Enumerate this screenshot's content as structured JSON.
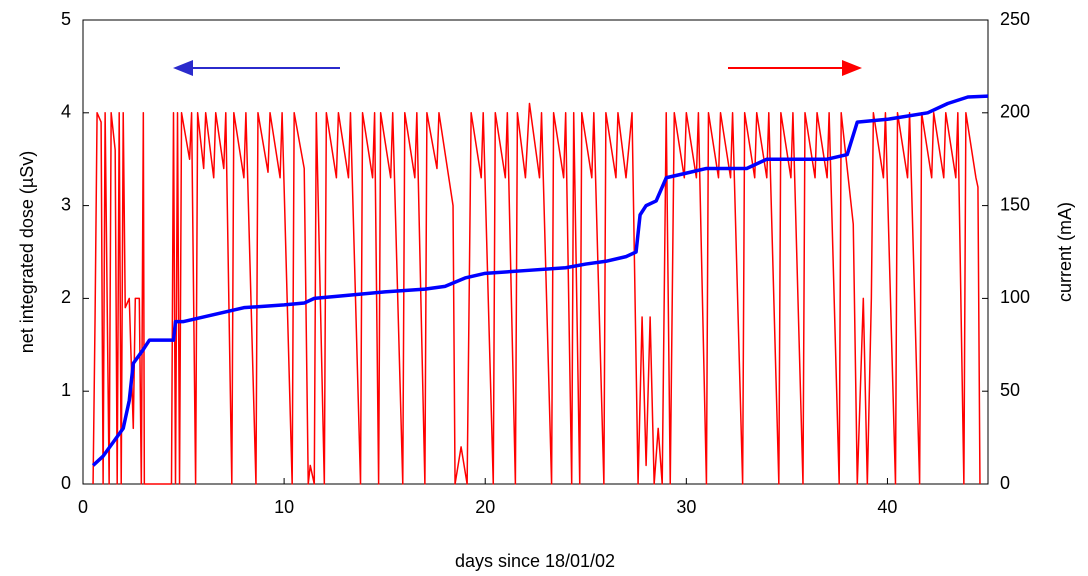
{
  "chart_data": {
    "type": "line",
    "xlabel": "days since 18/01/02",
    "ylabel": "net integrated dose (µSv)",
    "y2label": "current (mA)",
    "xlim": [
      0,
      45
    ],
    "xticks": [
      0,
      10,
      20,
      30,
      40
    ],
    "ylim": [
      0,
      5
    ],
    "yticks": [
      0,
      1,
      2,
      3,
      4,
      5
    ],
    "y2lim": [
      0,
      250
    ],
    "y2ticks": [
      0,
      50,
      100,
      150,
      200,
      250
    ],
    "grid": false,
    "series": [
      {
        "color": "#ff0000",
        "axis": "y2",
        "x": [
          0.5,
          0.6,
          0.7,
          0.9,
          1.0,
          1.1,
          1.3,
          1.4,
          1.6,
          1.7,
          1.8,
          1.9,
          2.0,
          2.1,
          2.3,
          2.5,
          2.6,
          2.8,
          2.9,
          3.0,
          3.05,
          4.4,
          4.5,
          4.6,
          4.7,
          4.8,
          4.9,
          5.3,
          5.4,
          5.6,
          5.7,
          6.0,
          6.1,
          6.5,
          6.6,
          7.0,
          7.1,
          7.4,
          7.5,
          8.0,
          8.1,
          8.6,
          8.7,
          9.2,
          9.3,
          9.8,
          9.9,
          10.4,
          10.5,
          11.0,
          11.2,
          11.3,
          11.5,
          11.6,
          12.0,
          12.1,
          12.6,
          12.7,
          13.2,
          13.3,
          13.8,
          13.9,
          14.4,
          14.5,
          14.7,
          14.8,
          15.3,
          15.4,
          15.9,
          16.0,
          16.5,
          16.6,
          17.0,
          17.1,
          17.6,
          17.7,
          18.4,
          18.5,
          18.8,
          19.1,
          19.3,
          19.8,
          19.9,
          20.4,
          20.5,
          21.0,
          21.1,
          21.5,
          21.6,
          22.0,
          22.2,
          22.7,
          22.8,
          23.3,
          23.4,
          23.9,
          24.0,
          24.3,
          24.4,
          24.7,
          24.8,
          25.3,
          25.4,
          25.9,
          26.0,
          26.5,
          26.6,
          27.0,
          27.3,
          27.6,
          27.8,
          28.0,
          28.2,
          28.4,
          28.6,
          28.8,
          29.0,
          29.2,
          29.4,
          29.9,
          30.0,
          30.5,
          30.6,
          31.0,
          31.1,
          31.6,
          31.7,
          32.2,
          32.3,
          32.8,
          32.9,
          33.4,
          33.5,
          34.0,
          34.1,
          34.6,
          34.7,
          35.2,
          35.3,
          35.8,
          35.9,
          36.4,
          36.5,
          37.0,
          37.1,
          37.6,
          37.7,
          38.2,
          38.3,
          38.5,
          38.8,
          39.0,
          39.2,
          39.3,
          39.8,
          39.9,
          40.4,
          40.5,
          41.0,
          41.1,
          41.6,
          41.7,
          42.2,
          42.3,
          42.8,
          42.9,
          43.4,
          43.5,
          43.8,
          43.9,
          44.4,
          44.5,
          44.6
        ],
        "values": [
          0,
          90,
          200,
          195,
          0,
          200,
          0,
          200,
          180,
          0,
          200,
          0,
          200,
          95,
          100,
          30,
          100,
          100,
          0,
          200,
          0,
          0,
          200,
          0,
          200,
          0,
          200,
          175,
          200,
          0,
          200,
          170,
          200,
          165,
          200,
          170,
          200,
          0,
          200,
          165,
          200,
          0,
          200,
          168,
          200,
          165,
          200,
          0,
          200,
          170,
          0,
          10,
          0,
          200,
          0,
          200,
          165,
          200,
          165,
          200,
          0,
          200,
          165,
          200,
          0,
          200,
          165,
          200,
          0,
          200,
          165,
          200,
          0,
          200,
          170,
          200,
          150,
          0,
          20,
          0,
          200,
          165,
          200,
          0,
          200,
          165,
          200,
          0,
          200,
          165,
          205,
          165,
          200,
          0,
          200,
          165,
          200,
          0,
          200,
          0,
          200,
          165,
          200,
          0,
          200,
          165,
          200,
          165,
          200,
          0,
          90,
          10,
          90,
          0,
          30,
          0,
          200,
          0,
          200,
          165,
          200,
          165,
          200,
          0,
          200,
          165,
          200,
          165,
          200,
          0,
          200,
          165,
          200,
          165,
          200,
          0,
          200,
          165,
          200,
          0,
          200,
          165,
          200,
          165,
          200,
          0,
          200,
          150,
          140,
          0,
          100,
          0,
          100,
          200,
          165,
          200,
          0,
          200,
          165,
          200,
          0,
          200,
          165,
          200,
          165,
          200,
          165,
          200,
          0,
          200,
          165,
          160,
          0
        ]
      },
      {
        "color": "#0000ff",
        "axis": "y",
        "x": [
          0.5,
          1,
          1.5,
          2,
          2.3,
          2.5,
          3,
          3.3,
          4.5,
          4.6,
          5,
          6,
          7,
          8,
          10,
          11,
          11.5,
          13,
          15,
          17,
          18,
          19,
          20,
          22,
          24,
          25,
          26,
          27,
          27.5,
          27.7,
          28,
          28.5,
          29,
          30,
          31,
          33,
          34,
          37,
          38,
          38.5,
          40,
          42,
          43,
          44,
          45
        ],
        "values": [
          0.2,
          0.3,
          0.45,
          0.6,
          0.9,
          1.3,
          1.45,
          1.55,
          1.55,
          1.75,
          1.75,
          1.8,
          1.85,
          1.9,
          1.93,
          1.95,
          2.0,
          2.03,
          2.07,
          2.1,
          2.13,
          2.22,
          2.27,
          2.3,
          2.33,
          2.37,
          2.4,
          2.45,
          2.5,
          2.9,
          3.0,
          3.05,
          3.3,
          3.35,
          3.4,
          3.4,
          3.5,
          3.5,
          3.55,
          3.9,
          3.93,
          4.0,
          4.1,
          4.17,
          4.18
        ]
      }
    ]
  }
}
